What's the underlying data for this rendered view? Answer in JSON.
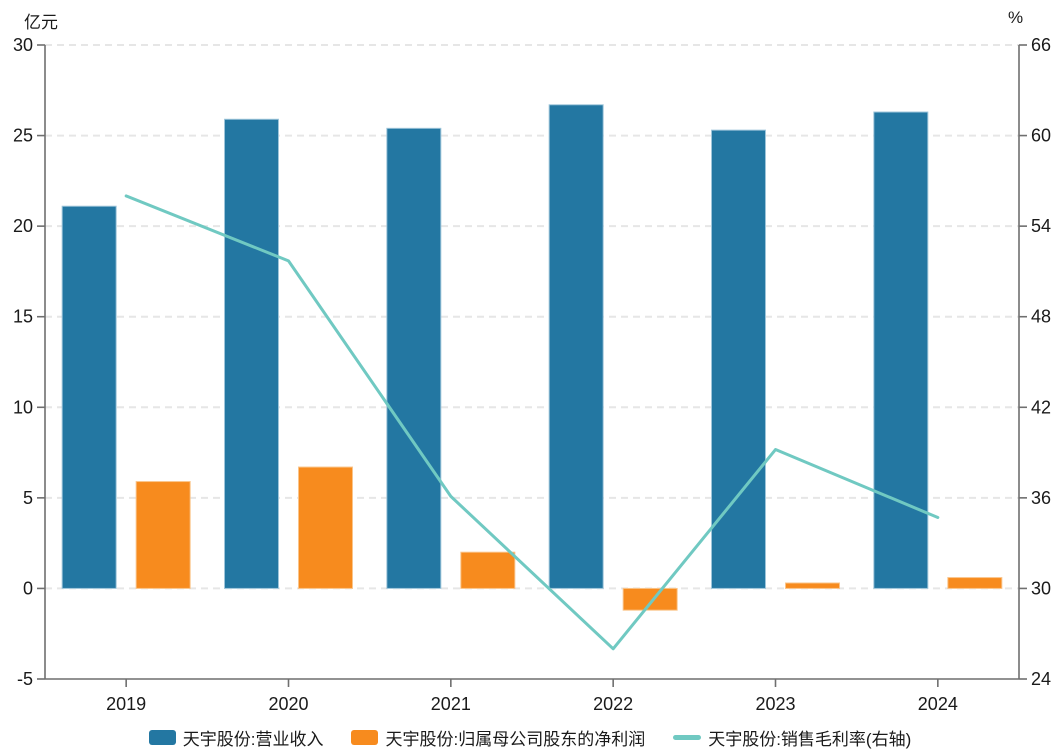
{
  "chart_data": {
    "type": "bar",
    "title": "",
    "categories": [
      "2019",
      "2020",
      "2021",
      "2022",
      "2023",
      "2024"
    ],
    "series": [
      {
        "key": "revenue",
        "name": "天宇股份:营业收入",
        "type": "bar",
        "axis": "left",
        "color": "#2377A2",
        "edge_color": "#9EC5DA",
        "values": [
          21.1,
          25.9,
          25.4,
          26.7,
          25.3,
          26.3
        ]
      },
      {
        "key": "net_profit",
        "name": "天宇股份:归属母公司股东的净利润",
        "type": "bar",
        "axis": "left",
        "color": "#F78B1E",
        "edge_color": "#FBC econ"
      },
      {
        "key": "gross_margin",
        "name": "天宇股份:销售毛利率(右轴)",
        "type": "line",
        "axis": "right",
        "color": "#70C9C2",
        "values": [
          56.0,
          51.7,
          36.1,
          26.0,
          39.2,
          34.7
        ]
      }
    ],
    "left_axis": {
      "unit": "亿元",
      "min": -5,
      "max": 30,
      "step": 5
    },
    "right_axis": {
      "unit": "%",
      "min": 24,
      "max": 66,
      "step": 6
    },
    "grid": "horizontal-dashed",
    "legend_position": "bottom",
    "colors": {
      "axis": "#6F6F6F",
      "grid": "#E6E6E6",
      "text": "#1A1A1A",
      "background": "#FFFFFF"
    }
  }
}
